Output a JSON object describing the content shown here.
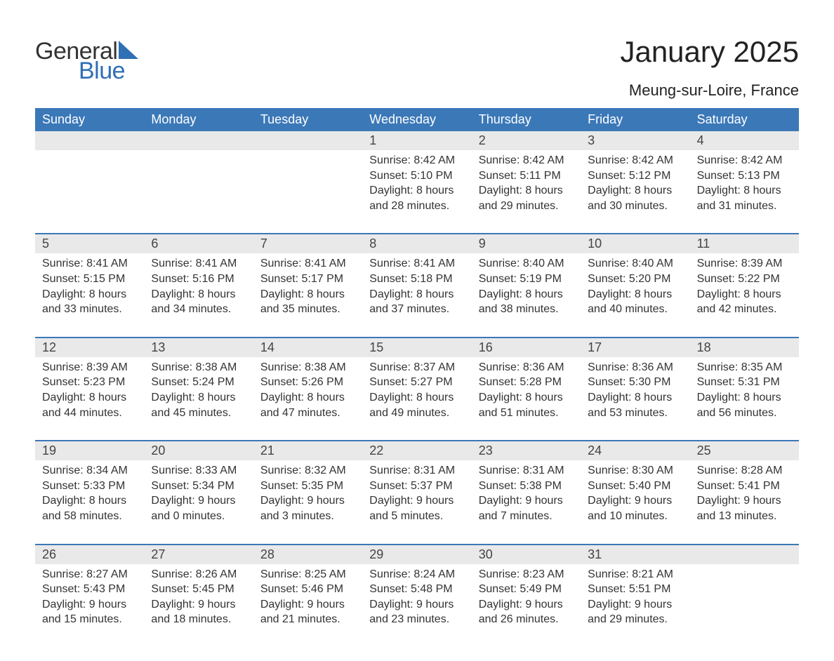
{
  "brand": {
    "word1": "General",
    "word2": "Blue",
    "color_primary": "#2f6fb5",
    "color_text": "#333333"
  },
  "title": "January 2025",
  "location": "Meung-sur-Loire, France",
  "weekdays": [
    "Sunday",
    "Monday",
    "Tuesday",
    "Wednesday",
    "Thursday",
    "Friday",
    "Saturday"
  ],
  "colors": {
    "header_bg": "#3b78b8",
    "header_fg": "#ffffff",
    "band_bg": "#e9e9e9",
    "rule": "#3b78b8",
    "page_bg": "#ffffff",
    "body_text": "#333333"
  },
  "typography": {
    "title_fontsize_pt": 32,
    "location_fontsize_pt": 17,
    "weekday_fontsize_pt": 14,
    "daynum_fontsize_pt": 14,
    "body_fontsize_pt": 12,
    "font_family": "Arial"
  },
  "weeks": [
    [
      null,
      null,
      null,
      {
        "day": "1",
        "sunrise": "Sunrise: 8:42 AM",
        "sunset": "Sunset: 5:10 PM",
        "daylight": "Daylight: 8 hours and 28 minutes."
      },
      {
        "day": "2",
        "sunrise": "Sunrise: 8:42 AM",
        "sunset": "Sunset: 5:11 PM",
        "daylight": "Daylight: 8 hours and 29 minutes."
      },
      {
        "day": "3",
        "sunrise": "Sunrise: 8:42 AM",
        "sunset": "Sunset: 5:12 PM",
        "daylight": "Daylight: 8 hours and 30 minutes."
      },
      {
        "day": "4",
        "sunrise": "Sunrise: 8:42 AM",
        "sunset": "Sunset: 5:13 PM",
        "daylight": "Daylight: 8 hours and 31 minutes."
      }
    ],
    [
      {
        "day": "5",
        "sunrise": "Sunrise: 8:41 AM",
        "sunset": "Sunset: 5:15 PM",
        "daylight": "Daylight: 8 hours and 33 minutes."
      },
      {
        "day": "6",
        "sunrise": "Sunrise: 8:41 AM",
        "sunset": "Sunset: 5:16 PM",
        "daylight": "Daylight: 8 hours and 34 minutes."
      },
      {
        "day": "7",
        "sunrise": "Sunrise: 8:41 AM",
        "sunset": "Sunset: 5:17 PM",
        "daylight": "Daylight: 8 hours and 35 minutes."
      },
      {
        "day": "8",
        "sunrise": "Sunrise: 8:41 AM",
        "sunset": "Sunset: 5:18 PM",
        "daylight": "Daylight: 8 hours and 37 minutes."
      },
      {
        "day": "9",
        "sunrise": "Sunrise: 8:40 AM",
        "sunset": "Sunset: 5:19 PM",
        "daylight": "Daylight: 8 hours and 38 minutes."
      },
      {
        "day": "10",
        "sunrise": "Sunrise: 8:40 AM",
        "sunset": "Sunset: 5:20 PM",
        "daylight": "Daylight: 8 hours and 40 minutes."
      },
      {
        "day": "11",
        "sunrise": "Sunrise: 8:39 AM",
        "sunset": "Sunset: 5:22 PM",
        "daylight": "Daylight: 8 hours and 42 minutes."
      }
    ],
    [
      {
        "day": "12",
        "sunrise": "Sunrise: 8:39 AM",
        "sunset": "Sunset: 5:23 PM",
        "daylight": "Daylight: 8 hours and 44 minutes."
      },
      {
        "day": "13",
        "sunrise": "Sunrise: 8:38 AM",
        "sunset": "Sunset: 5:24 PM",
        "daylight": "Daylight: 8 hours and 45 minutes."
      },
      {
        "day": "14",
        "sunrise": "Sunrise: 8:38 AM",
        "sunset": "Sunset: 5:26 PM",
        "daylight": "Daylight: 8 hours and 47 minutes."
      },
      {
        "day": "15",
        "sunrise": "Sunrise: 8:37 AM",
        "sunset": "Sunset: 5:27 PM",
        "daylight": "Daylight: 8 hours and 49 minutes."
      },
      {
        "day": "16",
        "sunrise": "Sunrise: 8:36 AM",
        "sunset": "Sunset: 5:28 PM",
        "daylight": "Daylight: 8 hours and 51 minutes."
      },
      {
        "day": "17",
        "sunrise": "Sunrise: 8:36 AM",
        "sunset": "Sunset: 5:30 PM",
        "daylight": "Daylight: 8 hours and 53 minutes."
      },
      {
        "day": "18",
        "sunrise": "Sunrise: 8:35 AM",
        "sunset": "Sunset: 5:31 PM",
        "daylight": "Daylight: 8 hours and 56 minutes."
      }
    ],
    [
      {
        "day": "19",
        "sunrise": "Sunrise: 8:34 AM",
        "sunset": "Sunset: 5:33 PM",
        "daylight": "Daylight: 8 hours and 58 minutes."
      },
      {
        "day": "20",
        "sunrise": "Sunrise: 8:33 AM",
        "sunset": "Sunset: 5:34 PM",
        "daylight": "Daylight: 9 hours and 0 minutes."
      },
      {
        "day": "21",
        "sunrise": "Sunrise: 8:32 AM",
        "sunset": "Sunset: 5:35 PM",
        "daylight": "Daylight: 9 hours and 3 minutes."
      },
      {
        "day": "22",
        "sunrise": "Sunrise: 8:31 AM",
        "sunset": "Sunset: 5:37 PM",
        "daylight": "Daylight: 9 hours and 5 minutes."
      },
      {
        "day": "23",
        "sunrise": "Sunrise: 8:31 AM",
        "sunset": "Sunset: 5:38 PM",
        "daylight": "Daylight: 9 hours and 7 minutes."
      },
      {
        "day": "24",
        "sunrise": "Sunrise: 8:30 AM",
        "sunset": "Sunset: 5:40 PM",
        "daylight": "Daylight: 9 hours and 10 minutes."
      },
      {
        "day": "25",
        "sunrise": "Sunrise: 8:28 AM",
        "sunset": "Sunset: 5:41 PM",
        "daylight": "Daylight: 9 hours and 13 minutes."
      }
    ],
    [
      {
        "day": "26",
        "sunrise": "Sunrise: 8:27 AM",
        "sunset": "Sunset: 5:43 PM",
        "daylight": "Daylight: 9 hours and 15 minutes."
      },
      {
        "day": "27",
        "sunrise": "Sunrise: 8:26 AM",
        "sunset": "Sunset: 5:45 PM",
        "daylight": "Daylight: 9 hours and 18 minutes."
      },
      {
        "day": "28",
        "sunrise": "Sunrise: 8:25 AM",
        "sunset": "Sunset: 5:46 PM",
        "daylight": "Daylight: 9 hours and 21 minutes."
      },
      {
        "day": "29",
        "sunrise": "Sunrise: 8:24 AM",
        "sunset": "Sunset: 5:48 PM",
        "daylight": "Daylight: 9 hours and 23 minutes."
      },
      {
        "day": "30",
        "sunrise": "Sunrise: 8:23 AM",
        "sunset": "Sunset: 5:49 PM",
        "daylight": "Daylight: 9 hours and 26 minutes."
      },
      {
        "day": "31",
        "sunrise": "Sunrise: 8:21 AM",
        "sunset": "Sunset: 5:51 PM",
        "daylight": "Daylight: 9 hours and 29 minutes."
      },
      null
    ]
  ]
}
